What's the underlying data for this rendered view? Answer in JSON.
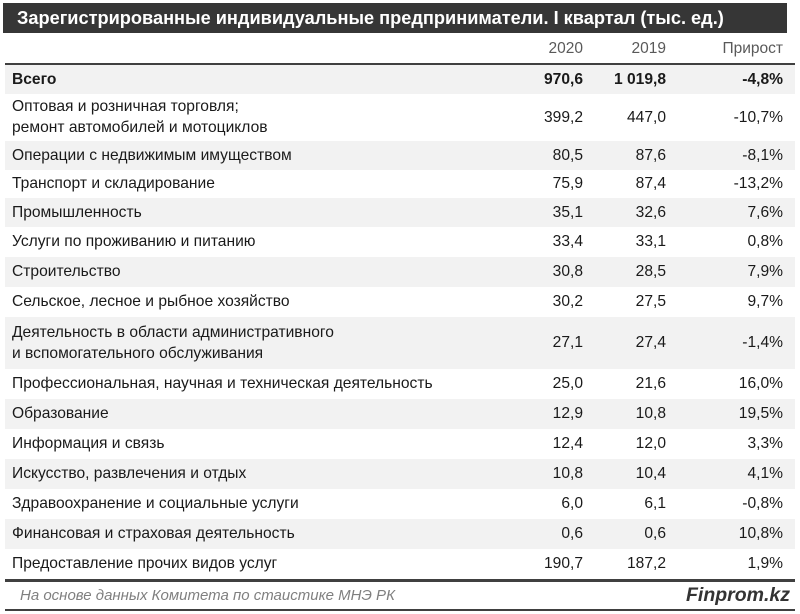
{
  "title": "Зарегистрированные индивидуальные предприниматели. I квартал (тыс. ед.)",
  "footer": {
    "source": "На основе данных Комитета по стаистике МНЭ РК",
    "brand": "Finprom.kz"
  },
  "colors": {
    "titlebar_bg": "#363636",
    "row_alt_bg": "#f2f2f2",
    "line": "#404040",
    "header_text": "#595959",
    "source_text": "#7f7f7f"
  },
  "chart_data": {
    "type": "table",
    "title": "Зарегистрированные индивидуальные предприниматели. I квартал (тыс. ед.)",
    "columns": [
      "2020",
      "2019",
      "Прирост"
    ],
    "rows": [
      {
        "label_lines": [
          "Всего"
        ],
        "values": [
          "970,6",
          "1 019,8",
          "-4,8%"
        ],
        "bold": true
      },
      {
        "label_lines": [
          "Оптовая и розничная торговля;",
          "ремонт автомобилей и мотоциклов"
        ],
        "values": [
          "399,2",
          "447,0",
          "-10,7%"
        ],
        "bold": false
      },
      {
        "label_lines": [
          "Операции с недвижимым имуществом"
        ],
        "values": [
          "80,5",
          "87,6",
          "-8,1%"
        ],
        "bold": false
      },
      {
        "label_lines": [
          "Транспорт и складирование"
        ],
        "values": [
          "75,9",
          "87,4",
          "-13,2%"
        ],
        "bold": false
      },
      {
        "label_lines": [
          "Промышленность"
        ],
        "values": [
          "35,1",
          "32,6",
          "7,6%"
        ],
        "bold": false
      },
      {
        "label_lines": [
          "Услуги по проживанию и питанию"
        ],
        "values": [
          "33,4",
          "33,1",
          "0,8%"
        ],
        "bold": false
      },
      {
        "label_lines": [
          "Строительство"
        ],
        "values": [
          "30,8",
          "28,5",
          "7,9%"
        ],
        "bold": false
      },
      {
        "label_lines": [
          "Сельское, лесное и рыбное хозяйство"
        ],
        "values": [
          "30,2",
          "27,5",
          "9,7%"
        ],
        "bold": false
      },
      {
        "label_lines": [
          "Деятельность в области административного",
          "и вспомогательного обслуживания"
        ],
        "values": [
          "27,1",
          "27,4",
          "-1,4%"
        ],
        "bold": false
      },
      {
        "label_lines": [
          "Профессиональная, научная и техническая деятельность"
        ],
        "values": [
          "25,0",
          "21,6",
          "16,0%"
        ],
        "bold": false
      },
      {
        "label_lines": [
          "Образование"
        ],
        "values": [
          "12,9",
          "10,8",
          "19,5%"
        ],
        "bold": false
      },
      {
        "label_lines": [
          "Информация и связь"
        ],
        "values": [
          "12,4",
          "12,0",
          "3,3%"
        ],
        "bold": false
      },
      {
        "label_lines": [
          "Искусство, развлечения и отдых"
        ],
        "values": [
          "10,8",
          "10,4",
          "4,1%"
        ],
        "bold": false
      },
      {
        "label_lines": [
          "Здравоохранение и социальные услуги"
        ],
        "values": [
          "6,0",
          "6,1",
          "-0,8%"
        ],
        "bold": false
      },
      {
        "label_lines": [
          "Финансовая и страховая деятельность"
        ],
        "values": [
          "0,6",
          "0,6",
          "10,8%"
        ],
        "bold": false
      },
      {
        "label_lines": [
          "Предоставление прочих видов услуг"
        ],
        "values": [
          "190,7",
          "187,2",
          "1,9%"
        ],
        "bold": false
      }
    ]
  }
}
